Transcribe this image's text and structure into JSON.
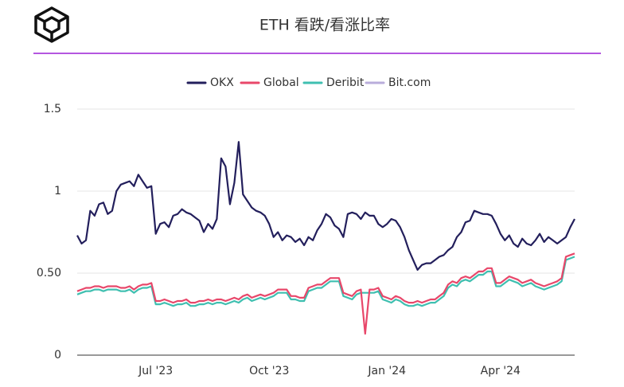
{
  "chart_data": {
    "type": "line",
    "title": "ETH 看跌/看涨比率",
    "categories": [
      null,
      null,
      null,
      null,
      null,
      null,
      null,
      null,
      null,
      null,
      null,
      null,
      null,
      null,
      null,
      null,
      null,
      null,
      "Jul '23",
      null,
      null,
      null,
      null,
      null,
      null,
      null,
      null,
      null,
      null,
      null,
      null,
      null,
      null,
      null,
      null,
      null,
      null,
      null,
      null,
      null,
      null,
      null,
      null,
      null,
      "Oct '23",
      null,
      null,
      null,
      null,
      null,
      null,
      null,
      null,
      null,
      null,
      null,
      null,
      null,
      null,
      null,
      null,
      null,
      null,
      null,
      null,
      null,
      null,
      null,
      null,
      null,
      null,
      "Jan '24",
      null,
      null,
      null,
      null,
      null,
      null,
      null,
      null,
      null,
      null,
      null,
      null,
      null,
      null,
      null,
      null,
      null,
      null,
      null,
      null,
      null,
      null,
      null,
      null,
      null,
      "Apr '24",
      null,
      null,
      null,
      null,
      null,
      null,
      null,
      null,
      null,
      null,
      null,
      null,
      null,
      null,
      null,
      null,
      null
    ],
    "series": [
      {
        "name": "OKX",
        "color": "#231f5c",
        "values": [
          0.73,
          0.68,
          0.7,
          0.88,
          0.85,
          0.92,
          0.93,
          0.86,
          0.88,
          1.0,
          1.04,
          1.05,
          1.06,
          1.03,
          1.1,
          1.06,
          1.02,
          1.03,
          0.74,
          0.8,
          0.81,
          0.78,
          0.85,
          0.86,
          0.89,
          0.87,
          0.86,
          0.84,
          0.82,
          0.75,
          0.8,
          0.77,
          0.83,
          1.2,
          1.15,
          0.92,
          1.05,
          1.3,
          0.98,
          0.94,
          0.9,
          0.88,
          0.87,
          0.85,
          0.8,
          0.72,
          0.75,
          0.7,
          0.73,
          0.72,
          0.69,
          0.71,
          0.67,
          0.72,
          0.7,
          0.76,
          0.8,
          0.86,
          0.84,
          0.79,
          0.77,
          0.72,
          0.86,
          0.87,
          0.86,
          0.83,
          0.87,
          0.85,
          0.85,
          0.8,
          0.78,
          0.8,
          0.83,
          0.82,
          0.78,
          0.72,
          0.64,
          0.58,
          0.52,
          0.55,
          0.56,
          0.56,
          0.58,
          0.6,
          0.61,
          0.64,
          0.66,
          0.72,
          0.75,
          0.81,
          0.82,
          0.88,
          0.87,
          0.86,
          0.86,
          0.85,
          0.8,
          0.74,
          0.7,
          0.73,
          0.68,
          0.66,
          0.71,
          0.68,
          0.67,
          0.7,
          0.74,
          0.69,
          0.72,
          0.7,
          0.68,
          0.7,
          0.72,
          0.78,
          0.83
        ]
      },
      {
        "name": "Global",
        "color": "#e8476a",
        "values": [
          0.39,
          0.4,
          0.41,
          0.41,
          0.42,
          0.42,
          0.41,
          0.42,
          0.42,
          0.42,
          0.41,
          0.41,
          0.42,
          0.4,
          0.42,
          0.43,
          0.43,
          0.44,
          0.33,
          0.33,
          0.34,
          0.33,
          0.32,
          0.33,
          0.33,
          0.34,
          0.32,
          0.32,
          0.33,
          0.33,
          0.34,
          0.33,
          0.34,
          0.34,
          0.33,
          0.34,
          0.35,
          0.34,
          0.36,
          0.37,
          0.35,
          0.36,
          0.37,
          0.36,
          0.37,
          0.38,
          0.4,
          0.4,
          0.4,
          0.36,
          0.36,
          0.35,
          0.35,
          0.41,
          0.42,
          0.43,
          0.43,
          0.45,
          0.47,
          0.47,
          0.47,
          0.38,
          0.37,
          0.36,
          0.39,
          0.4,
          0.13,
          0.4,
          0.4,
          0.41,
          0.36,
          0.35,
          0.34,
          0.36,
          0.35,
          0.33,
          0.32,
          0.32,
          0.33,
          0.32,
          0.33,
          0.34,
          0.34,
          0.36,
          0.38,
          0.43,
          0.45,
          0.44,
          0.47,
          0.48,
          0.47,
          0.49,
          0.51,
          0.51,
          0.53,
          0.53,
          0.44,
          0.44,
          0.46,
          0.48,
          0.47,
          0.46,
          0.44,
          0.45,
          0.46,
          0.44,
          0.43,
          0.42,
          0.43,
          0.44,
          0.45,
          0.47,
          0.6,
          0.61,
          0.62
        ]
      },
      {
        "name": "Deribit",
        "color": "#3fbfb0",
        "values": [
          0.37,
          0.38,
          0.39,
          0.39,
          0.4,
          0.4,
          0.39,
          0.4,
          0.4,
          0.4,
          0.39,
          0.39,
          0.4,
          0.38,
          0.4,
          0.41,
          0.41,
          0.42,
          0.31,
          0.31,
          0.32,
          0.31,
          0.3,
          0.31,
          0.31,
          0.32,
          0.3,
          0.3,
          0.31,
          0.31,
          0.32,
          0.31,
          0.32,
          0.32,
          0.31,
          0.32,
          0.33,
          0.32,
          0.34,
          0.35,
          0.33,
          0.34,
          0.35,
          0.34,
          0.35,
          0.36,
          0.38,
          0.38,
          0.38,
          0.34,
          0.34,
          0.33,
          0.33,
          0.39,
          0.4,
          0.41,
          0.41,
          0.43,
          0.45,
          0.45,
          0.45,
          0.36,
          0.35,
          0.34,
          0.37,
          0.38,
          0.38,
          0.38,
          0.38,
          0.39,
          0.34,
          0.33,
          0.32,
          0.34,
          0.33,
          0.31,
          0.3,
          0.3,
          0.31,
          0.3,
          0.31,
          0.32,
          0.32,
          0.34,
          0.36,
          0.41,
          0.43,
          0.42,
          0.45,
          0.46,
          0.45,
          0.47,
          0.49,
          0.49,
          0.51,
          0.51,
          0.42,
          0.42,
          0.44,
          0.46,
          0.45,
          0.44,
          0.42,
          0.43,
          0.44,
          0.42,
          0.41,
          0.4,
          0.41,
          0.42,
          0.43,
          0.45,
          0.58,
          0.59,
          0.6
        ]
      },
      {
        "name": "Bit.com",
        "color": "#b9addb",
        "values": [
          null,
          null,
          null,
          null,
          null,
          null,
          null,
          null,
          null,
          null,
          null,
          null,
          null,
          null,
          null,
          null,
          null,
          null,
          null,
          null,
          null,
          null,
          null,
          null,
          null,
          null,
          null,
          null,
          null,
          null,
          null,
          null,
          null,
          null,
          null,
          null,
          null,
          null,
          null,
          null,
          null,
          null,
          null,
          null,
          null,
          null,
          null,
          null,
          null,
          null,
          null,
          null,
          null,
          null,
          null,
          null,
          null,
          null,
          null,
          null,
          null,
          null,
          null,
          null,
          null,
          null,
          null,
          null,
          null,
          null,
          null,
          null,
          null,
          null,
          null,
          null,
          null,
          null,
          null,
          null,
          null,
          null,
          null,
          null,
          null,
          null,
          null,
          null,
          null,
          null,
          null,
          null,
          null,
          null,
          null,
          null,
          null,
          null,
          null,
          null,
          null,
          null,
          null,
          null,
          null,
          null,
          null,
          null,
          null,
          null,
          null,
          null,
          null,
          null,
          null
        ]
      }
    ],
    "ylim": [
      0,
      1.5
    ],
    "yticks": [
      0,
      {
        "value": 0.5,
        "label": "0.50"
      },
      1,
      1.5
    ],
    "grid": true
  }
}
